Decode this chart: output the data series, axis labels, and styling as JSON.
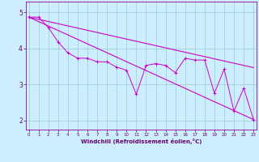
{
  "xlabel": "Windchill (Refroidissement éolien,°C)",
  "bg_color": "#cceeff",
  "grid_color": "#99cccc",
  "line_color": "#cc00cc",
  "x_ticks": [
    0,
    1,
    2,
    3,
    4,
    5,
    6,
    7,
    8,
    9,
    10,
    11,
    12,
    13,
    14,
    15,
    16,
    17,
    18,
    19,
    20,
    21,
    22,
    23
  ],
  "y_ticks": [
    2,
    3,
    4,
    5
  ],
  "xlim": [
    -0.3,
    23.3
  ],
  "ylim": [
    1.75,
    5.3
  ],
  "line1_x": [
    0,
    1,
    2,
    3,
    4,
    5,
    6,
    7,
    8,
    9,
    10,
    11,
    12,
    13,
    14,
    15,
    16,
    17,
    18,
    19,
    20,
    21,
    22,
    23
  ],
  "line1_y": [
    4.87,
    4.87,
    4.58,
    4.18,
    3.88,
    3.73,
    3.73,
    3.63,
    3.63,
    3.48,
    3.4,
    2.73,
    3.53,
    3.58,
    3.53,
    3.33,
    3.73,
    3.68,
    3.68,
    2.76,
    3.43,
    2.26,
    2.9,
    2.03
  ],
  "line2_x": [
    0,
    23
  ],
  "line2_y": [
    4.87,
    2.03
  ],
  "line4_x": [
    0,
    23
  ],
  "line4_y": [
    4.87,
    3.47
  ],
  "marker": "+"
}
